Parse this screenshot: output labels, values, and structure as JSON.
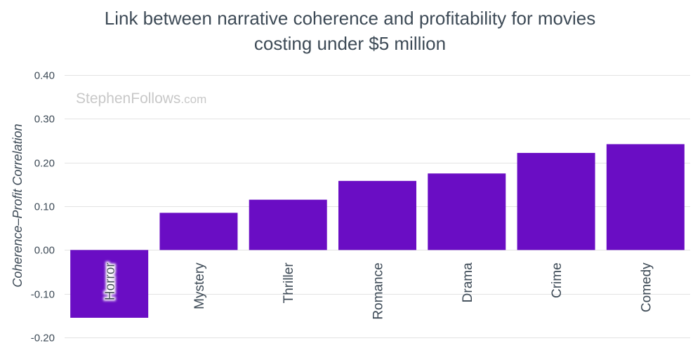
{
  "chart_data": {
    "type": "bar",
    "title_lines": [
      "Link between narrative coherence and profitability for movies",
      "costing under $5 million"
    ],
    "watermark_main": "StephenFollows",
    "watermark_suffix": ".com",
    "xlabel": "",
    "ylabel": "Coherence–Profit Correlation",
    "categories": [
      "Horror",
      "Mystery",
      "Thriller",
      "Romance",
      "Drama",
      "Crime",
      "Comedy"
    ],
    "values": [
      -0.155,
      0.085,
      0.115,
      0.158,
      0.175,
      0.222,
      0.242
    ],
    "ylim": [
      -0.2,
      0.4
    ],
    "yticks": [
      0.4,
      0.3,
      0.2,
      0.1,
      0.0,
      -0.1,
      -0.2
    ],
    "ytick_labels": [
      "0.40",
      "0.30",
      "0.20",
      "0.10",
      "0.00",
      "-0.10",
      "-0.20"
    ],
    "bar_color": "#6a0dc4",
    "highlight_label_category": "Horror",
    "grid": true
  }
}
